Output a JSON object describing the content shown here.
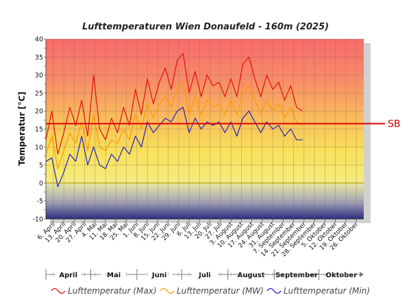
{
  "chart_data": {
    "type": "line",
    "title": "Lufttemperaturen Wien Donaufeld - 160m (2025)",
    "ylabel": "Temperatur [°C]",
    "ylim": [
      -10,
      40
    ],
    "yticks": [
      -10,
      -5,
      0,
      5,
      10,
      15,
      20,
      25,
      30,
      35,
      40
    ],
    "x_start": "2025-04-01",
    "x_end": "2025-10-31",
    "x_tick_labels": [
      "6. April",
      "13. April",
      "20. April",
      "27. April",
      "4. Mai",
      "11. Mai",
      "18. Mai",
      "25. Mai",
      "1. Juni",
      "8. Juni",
      "15. Juni",
      "22. Juni",
      "29. Juni",
      "6. Juli",
      "13. Juli",
      "20. Juli",
      "27. Juli",
      "3. August",
      "10. August",
      "17. August",
      "24. August",
      "31. August",
      "7. September",
      "14. September",
      "21. September",
      "28. September",
      "5. Oktober",
      "12. Oktober",
      "19. Oktober",
      "26. Oktober"
    ],
    "months": [
      "April",
      "Mai",
      "Juni",
      "Juli",
      "August",
      "September",
      "Oktober"
    ],
    "reference_line": {
      "label": "SB",
      "value": 16.5,
      "color": "#e00000"
    },
    "background_bands": "gradient from red (top, 40°C) through orange and yellow to blue (bottom, -10°C)",
    "grid": true,
    "legend_position": "bottom",
    "series": [
      {
        "name": "Lufttemperatur (Max)",
        "color": "#e01010",
        "x": [
          "2025-04-01",
          "2025-04-05",
          "2025-04-09",
          "2025-04-13",
          "2025-04-17",
          "2025-04-21",
          "2025-04-25",
          "2025-04-29",
          "2025-05-03",
          "2025-05-07",
          "2025-05-11",
          "2025-05-15",
          "2025-05-19",
          "2025-05-23",
          "2025-05-27",
          "2025-05-31",
          "2025-06-04",
          "2025-06-08",
          "2025-06-12",
          "2025-06-16",
          "2025-06-20",
          "2025-06-24",
          "2025-06-28",
          "2025-07-02",
          "2025-07-06",
          "2025-07-10",
          "2025-07-14",
          "2025-07-18",
          "2025-07-22",
          "2025-07-26",
          "2025-07-30",
          "2025-08-03",
          "2025-08-07",
          "2025-08-11",
          "2025-08-15",
          "2025-08-19",
          "2025-08-23",
          "2025-08-27",
          "2025-08-31",
          "2025-09-04",
          "2025-09-08",
          "2025-09-12",
          "2025-09-16",
          "2025-09-20"
        ],
        "values": [
          12,
          20,
          8,
          14,
          21,
          16,
          23,
          13,
          30,
          15,
          12,
          18,
          14,
          21,
          16,
          26,
          19,
          29,
          22,
          28,
          32,
          26,
          34,
          36,
          25,
          31,
          24,
          30,
          27,
          28,
          24,
          29,
          24,
          33,
          35,
          29,
          24,
          30,
          26,
          28,
          23,
          27,
          21,
          20
        ]
      },
      {
        "name": "Lufttemperatur (MW)",
        "color": "#ff9900",
        "x": [
          "2025-04-01",
          "2025-04-05",
          "2025-04-09",
          "2025-04-13",
          "2025-04-17",
          "2025-04-21",
          "2025-04-25",
          "2025-04-29",
          "2025-05-03",
          "2025-05-07",
          "2025-05-11",
          "2025-05-15",
          "2025-05-19",
          "2025-05-23",
          "2025-05-27",
          "2025-05-31",
          "2025-06-04",
          "2025-06-08",
          "2025-06-12",
          "2025-06-16",
          "2025-06-20",
          "2025-06-24",
          "2025-06-28",
          "2025-07-02",
          "2025-07-06",
          "2025-07-10",
          "2025-07-14",
          "2025-07-18",
          "2025-07-22",
          "2025-07-26",
          "2025-07-30",
          "2025-08-03",
          "2025-08-07",
          "2025-08-11",
          "2025-08-15",
          "2025-08-19",
          "2025-08-23",
          "2025-08-27",
          "2025-08-31",
          "2025-09-04",
          "2025-09-08",
          "2025-09-12",
          "2025-09-16",
          "2025-09-20"
        ],
        "values": [
          8,
          13,
          4,
          9,
          14,
          11,
          17,
          9,
          19,
          10,
          9,
          12,
          11,
          15,
          12,
          19,
          15,
          22,
          18,
          22,
          24,
          21,
          26,
          28,
          19,
          24,
          19,
          23,
          21,
          22,
          19,
          23,
          19,
          25,
          27,
          23,
          19,
          23,
          20,
          22,
          18,
          21,
          17,
          16
        ]
      },
      {
        "name": "Lufttemperatur (Min)",
        "color": "#2222bb",
        "x": [
          "2025-04-01",
          "2025-04-05",
          "2025-04-09",
          "2025-04-13",
          "2025-04-17",
          "2025-04-21",
          "2025-04-25",
          "2025-04-29",
          "2025-05-03",
          "2025-05-07",
          "2025-05-11",
          "2025-05-15",
          "2025-05-19",
          "2025-05-23",
          "2025-05-27",
          "2025-05-31",
          "2025-06-04",
          "2025-06-08",
          "2025-06-12",
          "2025-06-16",
          "2025-06-20",
          "2025-06-24",
          "2025-06-28",
          "2025-07-02",
          "2025-07-06",
          "2025-07-10",
          "2025-07-14",
          "2025-07-18",
          "2025-07-22",
          "2025-07-26",
          "2025-07-30",
          "2025-08-03",
          "2025-08-07",
          "2025-08-11",
          "2025-08-15",
          "2025-08-19",
          "2025-08-23",
          "2025-08-27",
          "2025-08-31",
          "2025-09-04",
          "2025-09-08",
          "2025-09-12",
          "2025-09-16",
          "2025-09-20"
        ],
        "values": [
          6,
          7,
          -1,
          3,
          8,
          6,
          13,
          5,
          10,
          5,
          4,
          8,
          6,
          10,
          8,
          13,
          10,
          17,
          14,
          16,
          18,
          17,
          20,
          21,
          14,
          18,
          15,
          17,
          16,
          17,
          14,
          17,
          13,
          18,
          20,
          17,
          14,
          17,
          15,
          16,
          13,
          15,
          12,
          12
        ]
      }
    ]
  }
}
